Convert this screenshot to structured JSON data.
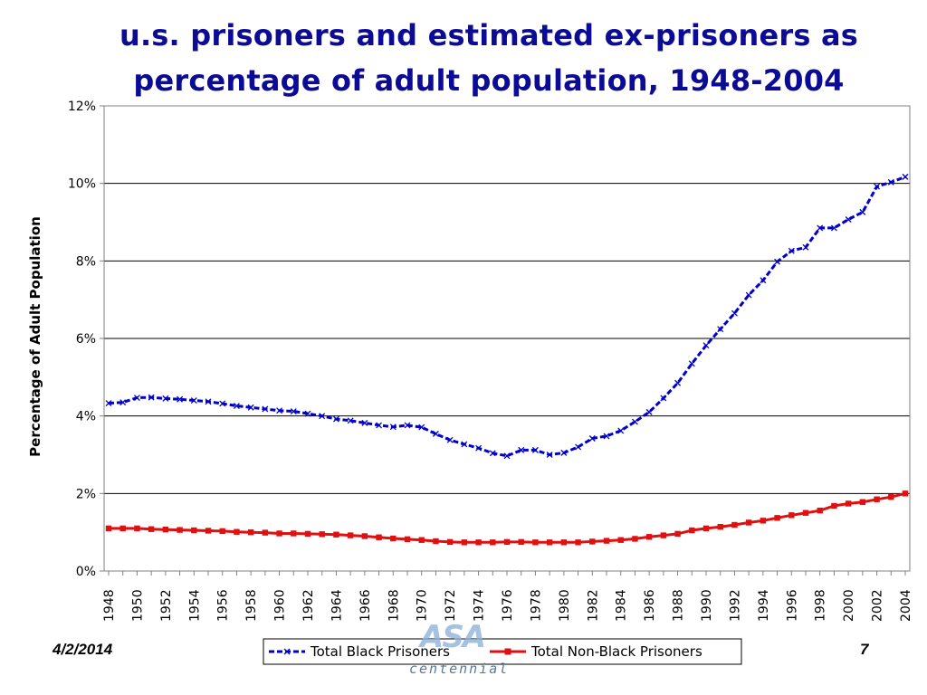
{
  "slide": {
    "title_line1": "u.s. prisoners and estimated ex-prisoners as",
    "title_line2": "percentage of adult population, 1948-2004",
    "date": "4/2/2014",
    "page_number": "7",
    "logo_text": "centennial",
    "logo_mark": "ASA"
  },
  "colors": {
    "title": "#0b0b96",
    "black_series": "#0000cc",
    "nonblack_series": "#e01010"
  },
  "chart_data": {
    "type": "line",
    "title": "",
    "xlabel": "",
    "ylabel": "Percentage of Adult Population",
    "ylim": [
      0,
      12
    ],
    "yticks": [
      0,
      2,
      4,
      6,
      8,
      10,
      12
    ],
    "ytick_labels": [
      "0%",
      "2%",
      "4%",
      "6%",
      "8%",
      "10%",
      "12%"
    ],
    "grid": true,
    "legend_position": "bottom-center",
    "x": [
      1948,
      1949,
      1950,
      1951,
      1952,
      1953,
      1954,
      1955,
      1956,
      1957,
      1958,
      1959,
      1960,
      1961,
      1962,
      1963,
      1964,
      1965,
      1966,
      1967,
      1968,
      1969,
      1970,
      1971,
      1972,
      1973,
      1974,
      1975,
      1976,
      1977,
      1978,
      1979,
      1980,
      1981,
      1982,
      1983,
      1984,
      1985,
      1986,
      1987,
      1988,
      1989,
      1990,
      1991,
      1992,
      1993,
      1994,
      1995,
      1996,
      1997,
      1998,
      1999,
      2000,
      2001,
      2002,
      2003,
      2004
    ],
    "xtick_labels": [
      "1948",
      "1950",
      "1952",
      "1954",
      "1956",
      "1958",
      "1960",
      "1962",
      "1964",
      "1966",
      "1968",
      "1970",
      "1972",
      "1974",
      "1976",
      "1978",
      "1980",
      "1982",
      "1984",
      "1986",
      "1988",
      "1990",
      "1992",
      "1994",
      "1996",
      "1998",
      "2000",
      "2002",
      "2004"
    ],
    "series": [
      {
        "name": "Total Black Prisoners",
        "marker": "x",
        "values": [
          4.33,
          4.35,
          4.47,
          4.48,
          4.45,
          4.43,
          4.4,
          4.37,
          4.32,
          4.26,
          4.22,
          4.18,
          4.14,
          4.12,
          4.06,
          4.0,
          3.92,
          3.88,
          3.82,
          3.76,
          3.72,
          3.76,
          3.71,
          3.54,
          3.38,
          3.27,
          3.17,
          3.04,
          2.97,
          3.12,
          3.12,
          3.0,
          3.05,
          3.2,
          3.42,
          3.48,
          3.62,
          3.85,
          4.1,
          4.46,
          4.85,
          5.35,
          5.82,
          6.24,
          6.65,
          7.12,
          7.5,
          7.98,
          8.26,
          8.35,
          8.85,
          8.85,
          9.07,
          9.26,
          9.92,
          10.03,
          10.17
        ]
      },
      {
        "name": "Total Non-Black Prisoners",
        "marker": "square",
        "values": [
          1.1,
          1.1,
          1.1,
          1.08,
          1.07,
          1.06,
          1.05,
          1.04,
          1.03,
          1.01,
          1.0,
          0.99,
          0.97,
          0.97,
          0.96,
          0.95,
          0.94,
          0.92,
          0.9,
          0.87,
          0.84,
          0.82,
          0.8,
          0.77,
          0.75,
          0.74,
          0.74,
          0.74,
          0.75,
          0.75,
          0.74,
          0.74,
          0.74,
          0.74,
          0.76,
          0.78,
          0.8,
          0.83,
          0.88,
          0.92,
          0.96,
          1.05,
          1.1,
          1.14,
          1.19,
          1.25,
          1.3,
          1.37,
          1.44,
          1.5,
          1.56,
          1.68,
          1.74,
          1.78,
          1.85,
          1.91,
          2.0
        ]
      }
    ]
  }
}
